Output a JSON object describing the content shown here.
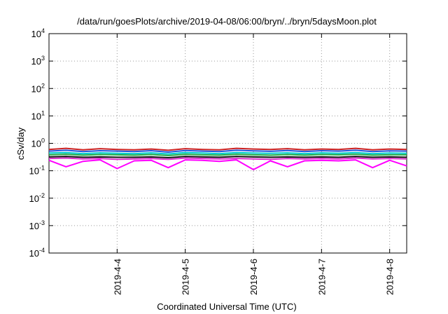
{
  "chart_data": {
    "type": "line",
    "title": "/data/run/goesPlots/archive/2019-04-08/06:00/bryn/../bryn/5daysMoon.plot",
    "xlabel": "Coordinated Universal Time (UTC)",
    "ylabel": "cSv/day",
    "yscale": "log",
    "ylim": [
      0.0001,
      10000
    ],
    "xlim": [
      "2019-04-03T00:00",
      "2019-04-08T06:00"
    ],
    "y_ticks": [
      {
        "value": 0.0001,
        "mantissa": "10",
        "exp": "-4"
      },
      {
        "value": 0.001,
        "mantissa": "10",
        "exp": "-3"
      },
      {
        "value": 0.01,
        "mantissa": "10",
        "exp": "-2"
      },
      {
        "value": 0.1,
        "mantissa": "10",
        "exp": "-1"
      },
      {
        "value": 1,
        "mantissa": "10",
        "exp": "0"
      },
      {
        "value": 10,
        "mantissa": "10",
        "exp": "1"
      },
      {
        "value": 100,
        "mantissa": "10",
        "exp": "2"
      },
      {
        "value": 1000,
        "mantissa": "10",
        "exp": "3"
      },
      {
        "value": 10000,
        "mantissa": "10",
        "exp": "4"
      }
    ],
    "x_ticks": [
      {
        "value": "2019-04-04T00:00",
        "label": "2019-4-4"
      },
      {
        "value": "2019-04-05T00:00",
        "label": "2019-4-5"
      },
      {
        "value": "2019-04-06T00:00",
        "label": "2019-4-6"
      },
      {
        "value": "2019-04-07T00:00",
        "label": "2019-4-7"
      },
      {
        "value": "2019-04-08T00:00",
        "label": "2019-4-8"
      }
    ],
    "grid": true,
    "legend": "none",
    "x": [
      "2019-04-03T00:00",
      "2019-04-03T06:00",
      "2019-04-03T12:00",
      "2019-04-03T18:00",
      "2019-04-04T00:00",
      "2019-04-04T06:00",
      "2019-04-04T12:00",
      "2019-04-04T18:00",
      "2019-04-05T00:00",
      "2019-04-05T06:00",
      "2019-04-05T12:00",
      "2019-04-05T18:00",
      "2019-04-06T00:00",
      "2019-04-06T06:00",
      "2019-04-06T12:00",
      "2019-04-06T18:00",
      "2019-04-07T00:00",
      "2019-04-07T06:00",
      "2019-04-07T12:00",
      "2019-04-07T18:00",
      "2019-04-08T00:00",
      "2019-04-08T06:00"
    ],
    "series": [
      {
        "color": "#cc2222",
        "values": [
          0.6,
          0.66,
          0.58,
          0.64,
          0.6,
          0.58,
          0.62,
          0.56,
          0.64,
          0.6,
          0.58,
          0.66,
          0.62,
          0.6,
          0.64,
          0.58,
          0.62,
          0.6,
          0.66,
          0.58,
          0.62,
          0.6
        ]
      },
      {
        "color": "#2255dd",
        "values": [
          0.52,
          0.56,
          0.5,
          0.54,
          0.52,
          0.5,
          0.54,
          0.48,
          0.55,
          0.52,
          0.5,
          0.56,
          0.53,
          0.51,
          0.55,
          0.5,
          0.54,
          0.52,
          0.56,
          0.5,
          0.53,
          0.52
        ]
      },
      {
        "color": "#00cccc",
        "values": [
          0.44,
          0.46,
          0.42,
          0.45,
          0.43,
          0.42,
          0.45,
          0.41,
          0.46,
          0.44,
          0.42,
          0.46,
          0.44,
          0.43,
          0.45,
          0.42,
          0.45,
          0.43,
          0.46,
          0.42,
          0.44,
          0.43
        ]
      },
      {
        "color": "#22aa44",
        "values": [
          0.38,
          0.4,
          0.37,
          0.39,
          0.38,
          0.37,
          0.39,
          0.36,
          0.4,
          0.38,
          0.37,
          0.4,
          0.38,
          0.37,
          0.39,
          0.37,
          0.39,
          0.38,
          0.4,
          0.37,
          0.38,
          0.38
        ]
      },
      {
        "color": "#111111",
        "values": [
          0.32,
          0.33,
          0.31,
          0.32,
          0.31,
          0.31,
          0.32,
          0.3,
          0.33,
          0.32,
          0.31,
          0.33,
          0.32,
          0.31,
          0.32,
          0.31,
          0.32,
          0.31,
          0.33,
          0.31,
          0.32,
          0.31
        ]
      },
      {
        "color": "#dd33cc",
        "values": [
          0.28,
          0.29,
          0.27,
          0.28,
          0.26,
          0.27,
          0.28,
          0.26,
          0.29,
          0.28,
          0.27,
          0.28,
          0.27,
          0.26,
          0.28,
          0.27,
          0.28,
          0.27,
          0.29,
          0.27,
          0.28,
          0.27
        ]
      },
      {
        "color": "#ff00ff",
        "values": [
          0.24,
          0.14,
          0.22,
          0.25,
          0.12,
          0.23,
          0.24,
          0.13,
          0.25,
          0.24,
          0.22,
          0.25,
          0.11,
          0.23,
          0.14,
          0.23,
          0.24,
          0.23,
          0.25,
          0.13,
          0.24,
          0.15
        ]
      }
    ]
  }
}
